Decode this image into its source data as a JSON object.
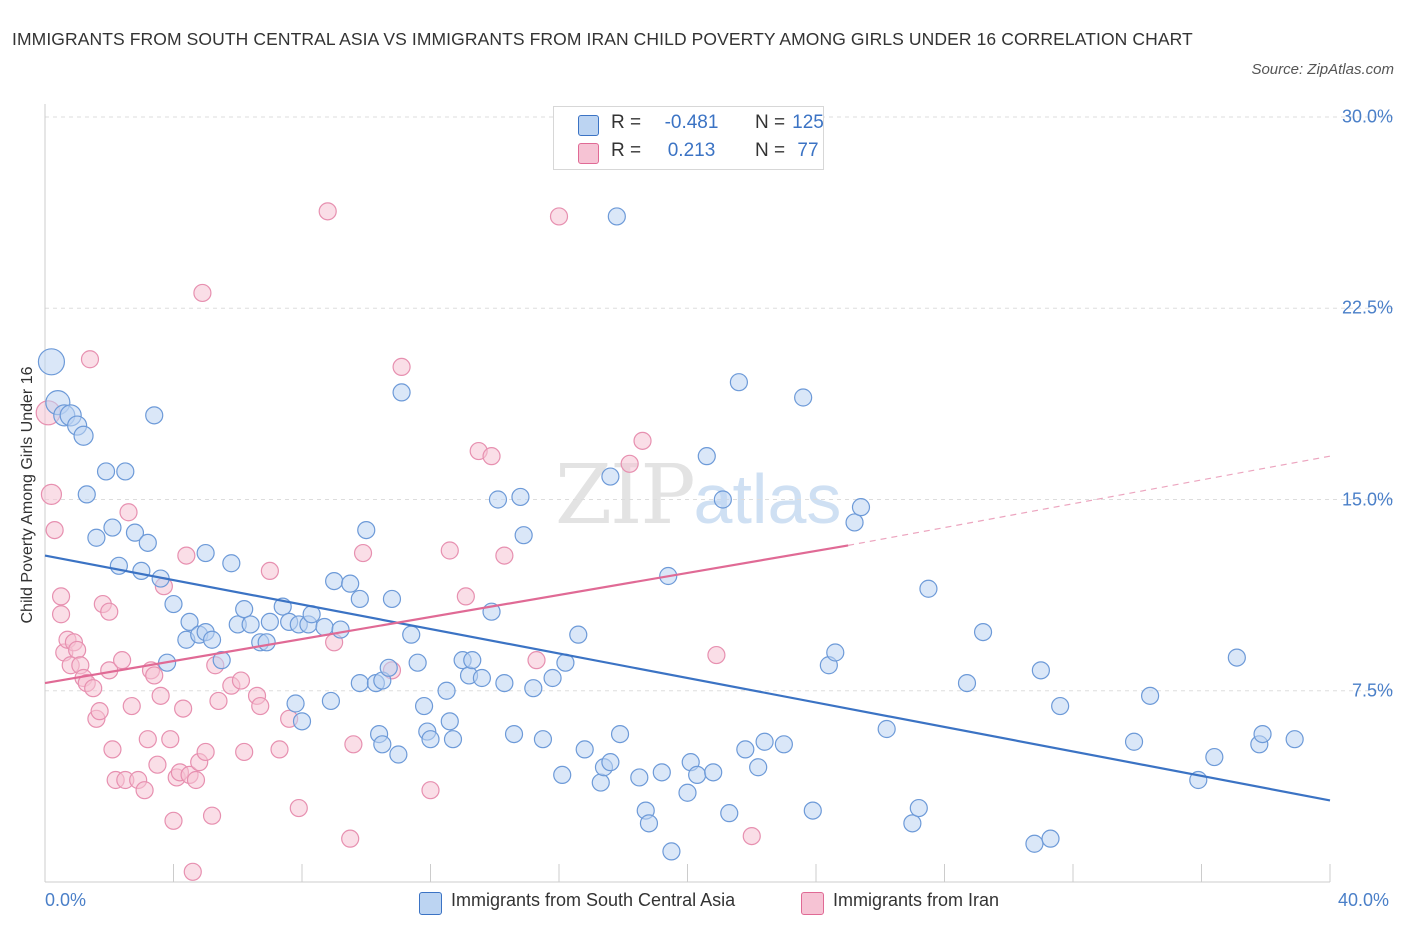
{
  "title": "IMMIGRANTS FROM SOUTH CENTRAL ASIA VS IMMIGRANTS FROM IRAN CHILD POVERTY AMONG GIRLS UNDER 16 CORRELATION CHART",
  "source": "Source: ZipAtlas.com",
  "watermark": {
    "zip": "ZIP",
    "atlas": "atlas"
  },
  "colors": {
    "blue": "#3b73c4",
    "blue_fill": "#bcd4f2",
    "pink": "#e06a95",
    "pink_fill": "#f6c3d4",
    "grid": "#dddddd",
    "axis_text": "#4a7fc8"
  },
  "legend_top": {
    "rows": [
      {
        "r_label": "R =",
        "r_value": "-0.481",
        "n_label": "N =",
        "n_value": "125"
      },
      {
        "r_label": "R =",
        "r_value": "0.213",
        "n_label": "N =",
        "n_value": "77"
      }
    ]
  },
  "legend_bottom": {
    "items": [
      {
        "label": "Immigrants from South Central Asia"
      },
      {
        "label": "Immigrants from Iran"
      }
    ]
  },
  "chart_data": {
    "type": "scatter",
    "title": "IMMIGRANTS FROM SOUTH CENTRAL ASIA VS IMMIGRANTS FROM IRAN CHILD POVERTY AMONG GIRLS UNDER 16 CORRELATION CHART",
    "xlabel": "",
    "ylabel": "Child Poverty Among Girls Under 16",
    "xlim": [
      0,
      40
    ],
    "ylim": [
      0,
      30
    ],
    "x_tick_labels": [
      "0.0%",
      "40.0%"
    ],
    "y_ticks": [
      7.5,
      15,
      22.5,
      30
    ],
    "y_tick_labels": [
      "7.5%",
      "15.0%",
      "22.5%",
      "30.0%"
    ],
    "grid": "horizontal dashed",
    "legend_placement": "top-center and bottom",
    "series": [
      {
        "name": "Immigrants from South Central Asia",
        "color": "#3b73c4",
        "r": -0.481,
        "n": 125,
        "trend": {
          "x0": 0,
          "y0": 12.8,
          "x1": 40,
          "y1": 3.2
        },
        "points": [
          [
            0.2,
            20.4
          ],
          [
            0.4,
            18.8
          ],
          [
            0.6,
            18.3
          ],
          [
            0.8,
            18.3
          ],
          [
            1.0,
            17.9
          ],
          [
            1.2,
            17.5
          ],
          [
            1.3,
            15.2
          ],
          [
            1.9,
            16.1
          ],
          [
            2.5,
            16.1
          ],
          [
            3.4,
            18.3
          ],
          [
            1.6,
            13.5
          ],
          [
            2.1,
            13.9
          ],
          [
            2.3,
            12.4
          ],
          [
            2.8,
            13.7
          ],
          [
            3.2,
            13.3
          ],
          [
            3.0,
            12.2
          ],
          [
            3.6,
            11.9
          ],
          [
            4.0,
            10.9
          ],
          [
            3.8,
            8.6
          ],
          [
            4.4,
            9.5
          ],
          [
            4.5,
            10.2
          ],
          [
            4.8,
            9.7
          ],
          [
            5.0,
            9.8
          ],
          [
            5.2,
            9.5
          ],
          [
            5.5,
            8.7
          ],
          [
            5.0,
            12.9
          ],
          [
            5.8,
            12.5
          ],
          [
            6.0,
            10.1
          ],
          [
            6.2,
            10.7
          ],
          [
            6.4,
            10.1
          ],
          [
            6.7,
            9.4
          ],
          [
            6.9,
            9.4
          ],
          [
            7.0,
            10.2
          ],
          [
            7.4,
            10.8
          ],
          [
            7.8,
            7.0
          ],
          [
            7.6,
            10.2
          ],
          [
            8.0,
            6.3
          ],
          [
            7.9,
            10.1
          ],
          [
            8.2,
            10.1
          ],
          [
            8.3,
            10.5
          ],
          [
            8.7,
            10.0
          ],
          [
            8.9,
            7.1
          ],
          [
            9.0,
            11.8
          ],
          [
            9.2,
            9.9
          ],
          [
            9.5,
            11.7
          ],
          [
            9.8,
            7.8
          ],
          [
            9.8,
            11.1
          ],
          [
            10.3,
            7.8
          ],
          [
            10.0,
            13.8
          ],
          [
            10.4,
            5.8
          ],
          [
            10.5,
            5.4
          ],
          [
            10.5,
            7.9
          ],
          [
            10.7,
            8.4
          ],
          [
            11.0,
            5.0
          ],
          [
            10.8,
            11.1
          ],
          [
            11.1,
            19.2
          ],
          [
            11.4,
            9.7
          ],
          [
            11.6,
            8.6
          ],
          [
            11.8,
            6.9
          ],
          [
            11.9,
            5.9
          ],
          [
            12.0,
            5.6
          ],
          [
            12.5,
            7.5
          ],
          [
            12.6,
            6.3
          ],
          [
            12.7,
            5.6
          ],
          [
            13.0,
            8.7
          ],
          [
            13.2,
            8.1
          ],
          [
            13.3,
            8.7
          ],
          [
            13.6,
            8.0
          ],
          [
            13.9,
            10.6
          ],
          [
            14.1,
            15.0
          ],
          [
            14.3,
            7.8
          ],
          [
            14.6,
            5.8
          ],
          [
            14.8,
            15.1
          ],
          [
            14.9,
            13.6
          ],
          [
            15.2,
            7.6
          ],
          [
            15.5,
            5.6
          ],
          [
            15.8,
            8.0
          ],
          [
            16.2,
            8.6
          ],
          [
            16.1,
            4.2
          ],
          [
            16.6,
            9.7
          ],
          [
            16.8,
            5.2
          ],
          [
            17.3,
            3.9
          ],
          [
            17.4,
            4.5
          ],
          [
            17.6,
            4.7
          ],
          [
            17.9,
            5.8
          ],
          [
            17.6,
            15.9
          ],
          [
            17.8,
            26.1
          ],
          [
            18.5,
            4.1
          ],
          [
            18.7,
            2.8
          ],
          [
            18.8,
            2.3
          ],
          [
            19.2,
            4.3
          ],
          [
            19.4,
            12.0
          ],
          [
            19.5,
            1.2
          ],
          [
            20.0,
            3.5
          ],
          [
            20.1,
            4.7
          ],
          [
            20.3,
            4.2
          ],
          [
            20.6,
            16.7
          ],
          [
            20.8,
            4.3
          ],
          [
            21.1,
            15.0
          ],
          [
            21.3,
            2.7
          ],
          [
            21.6,
            19.6
          ],
          [
            21.8,
            5.2
          ],
          [
            22.2,
            4.5
          ],
          [
            22.4,
            5.5
          ],
          [
            23.0,
            5.4
          ],
          [
            23.6,
            19.0
          ],
          [
            23.9,
            2.8
          ],
          [
            24.4,
            8.5
          ],
          [
            24.6,
            9.0
          ],
          [
            25.2,
            14.1
          ],
          [
            25.4,
            14.7
          ],
          [
            26.2,
            6.0
          ],
          [
            27.0,
            2.3
          ],
          [
            27.2,
            2.9
          ],
          [
            27.5,
            11.5
          ],
          [
            28.7,
            7.8
          ],
          [
            29.2,
            9.8
          ],
          [
            30.8,
            1.5
          ],
          [
            31.3,
            1.7
          ],
          [
            31.0,
            8.3
          ],
          [
            31.6,
            6.9
          ],
          [
            33.9,
            5.5
          ],
          [
            34.4,
            7.3
          ],
          [
            35.9,
            4.0
          ],
          [
            36.4,
            4.9
          ],
          [
            37.1,
            8.8
          ],
          [
            37.8,
            5.4
          ],
          [
            37.9,
            5.8
          ],
          [
            38.9,
            5.6
          ]
        ]
      },
      {
        "name": "Immigrants from Iran",
        "color": "#e06a95",
        "r": 0.213,
        "n": 77,
        "trend": {
          "x0": 0,
          "y0": 7.8,
          "x1": 25,
          "y1": 13.2,
          "dashed_to": [
            40,
            16.7
          ]
        },
        "points": [
          [
            0.1,
            18.4
          ],
          [
            0.2,
            15.2
          ],
          [
            0.3,
            13.8
          ],
          [
            0.5,
            10.5
          ],
          [
            0.5,
            11.2
          ],
          [
            0.6,
            9.0
          ],
          [
            0.7,
            9.5
          ],
          [
            0.8,
            8.5
          ],
          [
            0.9,
            9.4
          ],
          [
            1.0,
            9.1
          ],
          [
            1.1,
            8.5
          ],
          [
            1.2,
            8.0
          ],
          [
            1.3,
            7.8
          ],
          [
            1.5,
            7.6
          ],
          [
            1.6,
            6.4
          ],
          [
            1.7,
            6.7
          ],
          [
            1.8,
            10.9
          ],
          [
            2.0,
            10.6
          ],
          [
            2.0,
            8.3
          ],
          [
            2.1,
            5.2
          ],
          [
            2.2,
            4.0
          ],
          [
            2.4,
            8.7
          ],
          [
            2.5,
            4.0
          ],
          [
            2.6,
            14.5
          ],
          [
            2.7,
            6.9
          ],
          [
            2.9,
            4.0
          ],
          [
            3.1,
            3.6
          ],
          [
            3.2,
            5.6
          ],
          [
            3.3,
            8.3
          ],
          [
            3.4,
            8.1
          ],
          [
            3.5,
            4.6
          ],
          [
            3.6,
            7.3
          ],
          [
            3.7,
            11.6
          ],
          [
            3.9,
            5.6
          ],
          [
            4.0,
            2.4
          ],
          [
            4.1,
            4.1
          ],
          [
            4.2,
            4.3
          ],
          [
            4.3,
            6.8
          ],
          [
            4.4,
            12.8
          ],
          [
            4.5,
            4.2
          ],
          [
            4.6,
            0.4
          ],
          [
            4.7,
            4.0
          ],
          [
            4.8,
            4.7
          ],
          [
            4.9,
            23.1
          ],
          [
            5.0,
            5.1
          ],
          [
            5.2,
            2.6
          ],
          [
            5.3,
            8.5
          ],
          [
            5.4,
            7.1
          ],
          [
            1.4,
            20.5
          ],
          [
            5.8,
            7.7
          ],
          [
            6.1,
            7.9
          ],
          [
            6.2,
            5.1
          ],
          [
            6.6,
            7.3
          ],
          [
            6.7,
            6.9
          ],
          [
            7.0,
            12.2
          ],
          [
            7.3,
            5.2
          ],
          [
            7.6,
            6.4
          ],
          [
            7.9,
            2.9
          ],
          [
            8.8,
            26.3
          ],
          [
            9.0,
            9.4
          ],
          [
            9.5,
            1.7
          ],
          [
            9.6,
            5.4
          ],
          [
            9.9,
            12.9
          ],
          [
            10.8,
            8.3
          ],
          [
            11.1,
            20.2
          ],
          [
            12.0,
            3.6
          ],
          [
            12.6,
            13.0
          ],
          [
            13.1,
            11.2
          ],
          [
            13.5,
            16.9
          ],
          [
            13.9,
            16.7
          ],
          [
            14.3,
            12.8
          ],
          [
            15.3,
            8.7
          ],
          [
            16.0,
            26.1
          ],
          [
            18.2,
            16.4
          ],
          [
            18.6,
            17.3
          ],
          [
            20.9,
            8.9
          ],
          [
            22.0,
            1.8
          ]
        ]
      }
    ]
  }
}
